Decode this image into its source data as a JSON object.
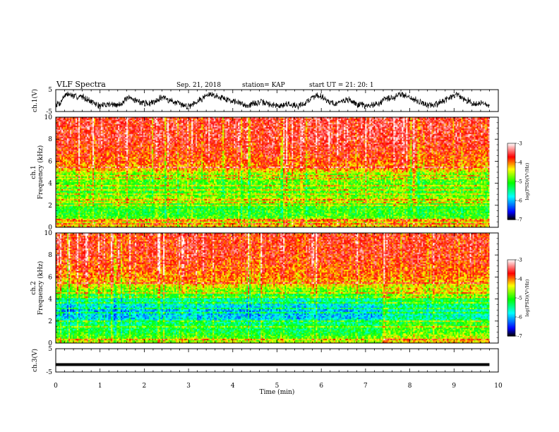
{
  "header": {
    "title": "VLF Spectra",
    "date": "Sep. 21, 2018",
    "station": "station= KAP",
    "start_ut": "start  UT =   21: 20: 1"
  },
  "chart_data": [
    {
      "type": "line",
      "panel": "ch1-waveform",
      "ylabel": "ch.1(V)",
      "ylim": [
        -5,
        5
      ],
      "yticks": [
        "5",
        "-5"
      ],
      "x_range_min": [
        0,
        9.8
      ],
      "series": [
        {
          "color": "#000000",
          "envelope_center": [
            -1.5,
            -1.2,
            2.5,
            2.8,
            2.2,
            1.5,
            2.0,
            1.0,
            -0.5,
            -1.5,
            -2.5,
            -2.0,
            -1.5,
            -1.8,
            -2.2,
            -1.2,
            0.5,
            1.0,
            0.5,
            -0.5,
            -1.0,
            -1.5,
            -0.8,
            0.2,
            1.5,
            1.2,
            0.0,
            -0.5,
            -1.5,
            -2.0,
            -2.5,
            -1.8,
            -0.5,
            0.5,
            1.8,
            2.8,
            2.5,
            1.8,
            1.5,
            0.5,
            0.2,
            -0.5,
            -1.2,
            -1.8,
            -2.2,
            -1.5,
            -1.0,
            -0.8,
            -1.2,
            -1.8,
            -2.2,
            -2.5,
            -2.0,
            -1.5,
            -1.8,
            -2.5,
            -2.0,
            -1.0,
            0.5,
            2.0,
            2.5,
            1.5,
            0.0,
            -1.0,
            -1.5,
            -1.0,
            0.5,
            0.2,
            -1.0,
            -1.8,
            -2.0,
            -2.5,
            -2.2,
            -1.5,
            -1.0,
            0.5,
            1.2,
            0.8,
            2.5,
            3.0,
            2.2,
            1.2,
            0.5,
            -0.5,
            -1.5,
            -2.0,
            -2.2,
            -1.5,
            -0.5,
            0.5,
            1.5,
            2.5,
            2.0,
            1.0,
            0.0,
            -1.0,
            -1.5,
            -1.2,
            -1.8,
            -2.2
          ],
          "envelope_amplitude": 1.5
        }
      ]
    },
    {
      "type": "heatmap",
      "panel": "ch1-spectrogram",
      "ylabel": "ch.1\nFrequency (kHz)",
      "ylim": [
        0,
        10
      ],
      "yticks": [
        "0",
        "2",
        "4",
        "6",
        "8",
        "10"
      ],
      "x_range_min": [
        0,
        9.8
      ],
      "z_label": "log(PSD)(V²/Hz)",
      "z_range": [
        -7,
        -3
      ],
      "z_ticks": [
        "-3",
        "-4",
        "-5",
        "-6",
        "-7"
      ],
      "colormap": [
        "#000000",
        "#0000ff",
        "#00ffff",
        "#00ff00",
        "#ffff00",
        "#ff0000",
        "#ffffff"
      ],
      "profile_khz": [
        0,
        0.5,
        1.0,
        2.0,
        2.6,
        3.0,
        4.0,
        4.8,
        5.2,
        6.0,
        8.0,
        10.0
      ],
      "profile_logpsd": [
        -4.2,
        -4.5,
        -5.0,
        -5.1,
        -4.6,
        -5.0,
        -4.9,
        -4.8,
        -4.2,
        -3.9,
        -3.6,
        -3.6
      ],
      "lines_khz": [
        0.3,
        0.55,
        0.75,
        2.0,
        2.3,
        2.55,
        3.0,
        3.45,
        3.8,
        4.4,
        4.7,
        5.4
      ]
    },
    {
      "type": "heatmap",
      "panel": "ch2-spectrogram",
      "ylabel": "ch.2\nFrequency (kHz)",
      "ylim": [
        0,
        10
      ],
      "yticks": [
        "0",
        "2",
        "4",
        "6",
        "8",
        "10"
      ],
      "x_range_min": [
        0,
        9.8
      ],
      "z_label": "log(PSD)(V²/Hz)",
      "z_range": [
        -7,
        -3
      ],
      "z_ticks": [
        "-3",
        "-4",
        "-5",
        "-6",
        "-7"
      ],
      "colormap": [
        "#000000",
        "#0000ff",
        "#00ffff",
        "#00ff00",
        "#ffff00",
        "#ff0000",
        "#ffffff"
      ],
      "profile_khz": [
        0,
        0.5,
        1.0,
        1.8,
        2.3,
        3.0,
        3.8,
        4.5,
        5.2,
        6.0,
        8.0,
        10.0
      ],
      "profile_logpsd": [
        -4.5,
        -4.9,
        -5.2,
        -5.4,
        -5.9,
        -6.0,
        -5.6,
        -5.0,
        -4.4,
        -4.0,
        -3.7,
        -3.7
      ],
      "lines_khz": [
        0.3,
        1.5,
        2.0,
        2.7,
        3.2,
        3.6,
        4.2,
        4.6,
        5.5
      ]
    },
    {
      "type": "line",
      "panel": "ch3-waveform",
      "ylabel": "ch.3(V)",
      "ylim": [
        -5,
        5
      ],
      "yticks": [
        "5",
        "-5"
      ],
      "x_range_min": [
        0,
        9.8
      ],
      "series": [
        {
          "color": "#000000",
          "values_flat": -1.8
        }
      ]
    }
  ],
  "xaxis": {
    "label": "Time (min)",
    "xlim": [
      0,
      10
    ],
    "ticks": [
      "0",
      "1",
      "2",
      "3",
      "4",
      "5",
      "6",
      "7",
      "8",
      "9",
      "10"
    ]
  }
}
